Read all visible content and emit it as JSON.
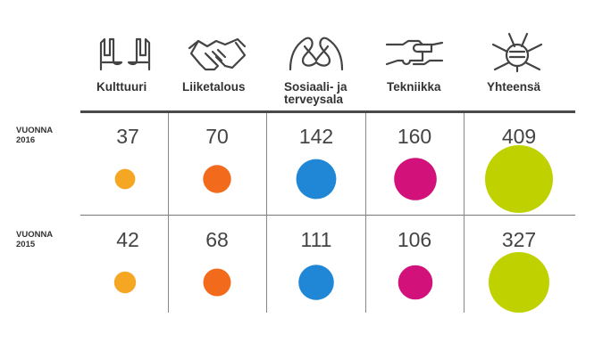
{
  "chart_data": {
    "type": "bubble-table",
    "categories": [
      "Kulttuuri",
      "Liiketalous",
      "Sosiaali- ja terveysala",
      "Tekniikka",
      "Yhteensä"
    ],
    "category_label_lines": [
      [
        "Kulttuuri"
      ],
      [
        "Liiketalous"
      ],
      [
        "Sosiaali- ja",
        "terveysala"
      ],
      [
        "Tekniikka"
      ],
      [
        "Yhteensä"
      ]
    ],
    "category_icons": [
      "hands-frame-icon",
      "handshake-icon",
      "heart-hands-icon",
      "puzzle-hands-icon",
      "stacked-hands-icon"
    ],
    "colors": [
      "#f5a623",
      "#f26a1b",
      "#1f87d6",
      "#d2117a",
      "#bfd200"
    ],
    "series": [
      {
        "name": "VUONNA 2016",
        "label_lines": [
          "VUONNA",
          "2016"
        ],
        "values": [
          37,
          70,
          142,
          160,
          409
        ]
      },
      {
        "name": "VUONNA 2015",
        "label_lines": [
          "VUONNA",
          "2015"
        ],
        "values": [
          42,
          68,
          111,
          106,
          327
        ]
      }
    ]
  }
}
